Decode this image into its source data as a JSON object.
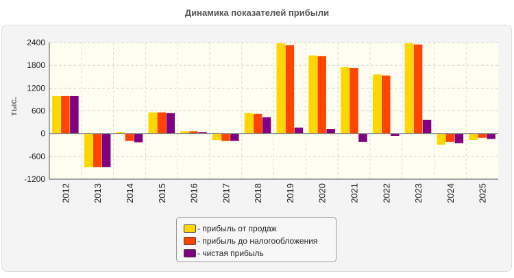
{
  "chart_data": {
    "type": "bar",
    "title": "Динамика показателей прибыли",
    "ylabel": "тыс.",
    "xlabel": "",
    "categories": [
      "2012",
      "2013",
      "2014",
      "2015",
      "2016",
      "2017",
      "2018",
      "2019",
      "2020",
      "2021",
      "2022",
      "2023",
      "2024",
      "2025"
    ],
    "ylim": [
      -1200,
      2400
    ],
    "yticks": [
      "2400",
      "1800",
      "1200",
      "600",
      "0",
      "-600",
      "-1200"
    ],
    "grid": true,
    "legend_position": "bottom",
    "series": [
      {
        "name": "прибыль от продаж",
        "color": "#ffd700",
        "values": [
          990,
          -880,
          40,
          560,
          60,
          -170,
          540,
          2380,
          2060,
          1750,
          1560,
          2380,
          -290,
          -170
        ]
      },
      {
        "name": "прибыль до налогообложения",
        "color": "#ff4500",
        "values": [
          990,
          -880,
          -190,
          560,
          60,
          -190,
          520,
          2330,
          2040,
          1730,
          1530,
          2350,
          -220,
          -110
        ]
      },
      {
        "name": "чистая прибыль",
        "color": "#800080",
        "values": [
          990,
          -880,
          -230,
          540,
          40,
          -190,
          430,
          160,
          120,
          -220,
          -60,
          360,
          -250,
          -140
        ]
      }
    ]
  }
}
